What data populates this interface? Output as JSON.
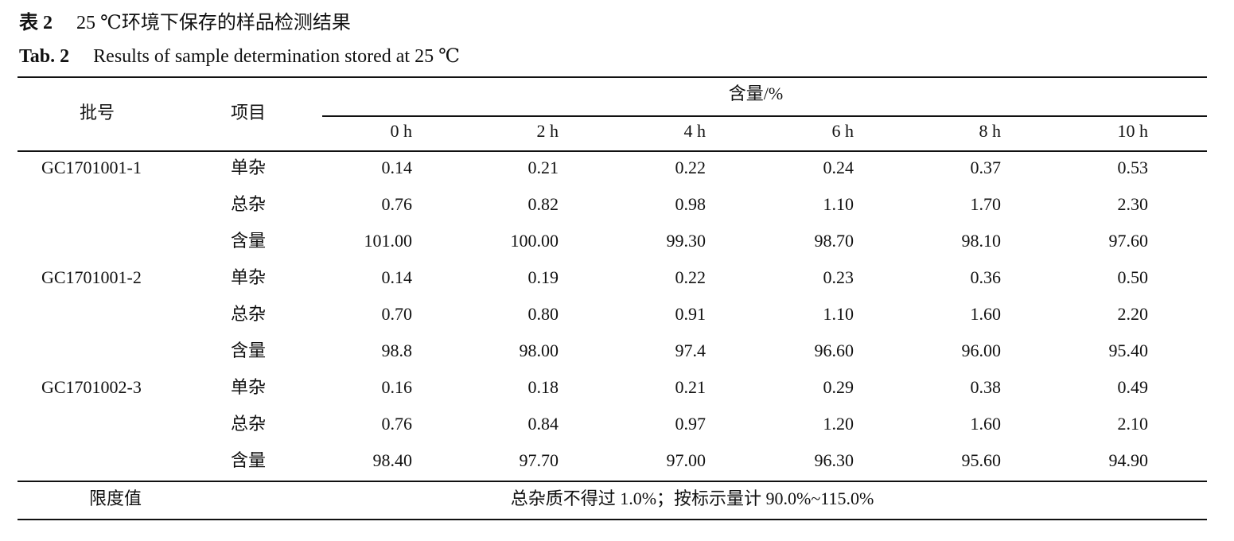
{
  "caption": {
    "cn_label": "表 2",
    "cn_title": "25 ℃环境下保存的样品检测结果",
    "en_label": "Tab. 2",
    "en_title": "Results of sample determination stored at 25 ℃"
  },
  "header": {
    "batch": "批号",
    "item": "项目",
    "content": "含量/%",
    "times": [
      "0 h",
      "2 h",
      "4 h",
      "6 h",
      "8 h",
      "10 h"
    ]
  },
  "batches": [
    {
      "id": "GC1701001-1",
      "rows": [
        {
          "item": "单杂",
          "values": [
            "0.14",
            "0.21",
            "0.22",
            "0.24",
            "0.37",
            "0.53"
          ]
        },
        {
          "item": "总杂",
          "values": [
            "0.76",
            "0.82",
            "0.98",
            "1.10",
            "1.70",
            "2.30"
          ]
        },
        {
          "item": "含量",
          "values": [
            "101.00",
            "100.00",
            "99.30",
            "98.70",
            "98.10",
            "97.60"
          ]
        }
      ]
    },
    {
      "id": "GC1701001-2",
      "rows": [
        {
          "item": "单杂",
          "values": [
            "0.14",
            "0.19",
            "0.22",
            "0.23",
            "0.36",
            "0.50"
          ]
        },
        {
          "item": "总杂",
          "values": [
            "0.70",
            "0.80",
            "0.91",
            "1.10",
            "1.60",
            "2.20"
          ]
        },
        {
          "item": "含量",
          "values": [
            "98.8",
            "98.00",
            "97.4",
            "96.60",
            "96.00",
            "95.40"
          ]
        }
      ]
    },
    {
      "id": "GC1701002-3",
      "rows": [
        {
          "item": "单杂",
          "values": [
            "0.16",
            "0.18",
            "0.21",
            "0.29",
            "0.38",
            "0.49"
          ]
        },
        {
          "item": "总杂",
          "values": [
            "0.76",
            "0.84",
            "0.97",
            "1.20",
            "1.60",
            "2.10"
          ]
        },
        {
          "item": "含量",
          "values": [
            "98.40",
            "97.70",
            "97.00",
            "96.30",
            "95.60",
            "94.90"
          ]
        }
      ]
    }
  ],
  "footer": {
    "label": "限度值",
    "text": "总杂质不得过 1.0%；按标示量计 90.0%~115.0%"
  }
}
